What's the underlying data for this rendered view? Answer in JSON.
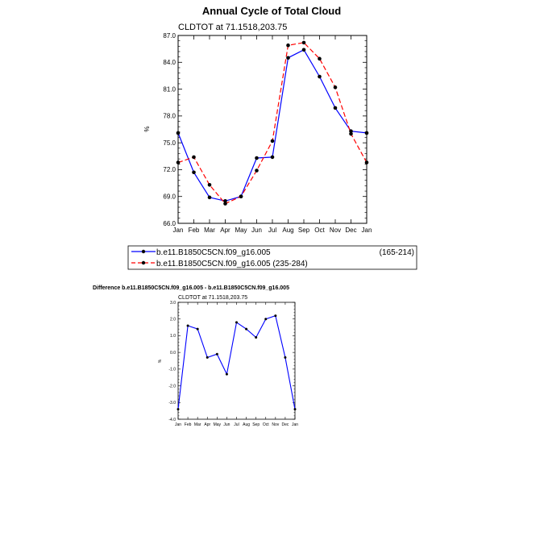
{
  "main_title": "Annual Cycle of Total Cloud",
  "chart_data": [
    {
      "type": "line",
      "title": "Annual Cycle of Total Cloud",
      "subtitle": "CLDTOT at 71.1518,203.75",
      "xlabel": "",
      "ylabel": "%",
      "categories": [
        "Jan",
        "Feb",
        "Mar",
        "Apr",
        "May",
        "Jun",
        "Jul",
        "Aug",
        "Sep",
        "Oct",
        "Nov",
        "Dec",
        "Jan"
      ],
      "ylim": [
        66.0,
        87.0
      ],
      "yticks": [
        "66.0",
        "69.0",
        "72.0",
        "75.0",
        "78.0",
        "81.0",
        "84.0",
        "87.0"
      ],
      "series": [
        {
          "name": "b.e11.B1850C5CN.f09_g16.005",
          "period": "(165-214)",
          "color": "#0000ff",
          "dash": "solid",
          "values": [
            76.1,
            71.7,
            68.9,
            68.5,
            69.0,
            73.3,
            73.4,
            84.5,
            85.4,
            82.4,
            78.9,
            76.3,
            76.1
          ]
        },
        {
          "name": "b.e11.B1850C5CN.f09_g16.005 (235-284)",
          "period": "",
          "color": "#ff0000",
          "dash": "dashed",
          "values": [
            72.8,
            73.4,
            70.3,
            68.2,
            69.0,
            71.9,
            75.2,
            85.9,
            86.2,
            84.4,
            81.2,
            76.0,
            72.8
          ]
        }
      ],
      "legend_position": "below"
    },
    {
      "type": "line",
      "title": "Difference b.e11.B1850C5CN.f09_g16.005 - b.e11.B1850C5CN.f09_g16.005",
      "subtitle": "CLDTOT at 71.1518,203.75",
      "xlabel": "",
      "ylabel": "%",
      "categories": [
        "Jan",
        "Feb",
        "Mar",
        "Apr",
        "May",
        "Jun",
        "Jul",
        "Aug",
        "Sep",
        "Oct",
        "Nov",
        "Dec",
        "Jan"
      ],
      "ylim": [
        -4.0,
        3.0
      ],
      "yticks": [
        "-4.0",
        "-3.0",
        "-2.0",
        "-1.0",
        "0.0",
        "1.0",
        "2.0",
        "3.0"
      ],
      "series": [
        {
          "name": "",
          "color": "#0000ff",
          "values": [
            -3.4,
            1.6,
            1.4,
            -0.3,
            -0.1,
            -1.3,
            1.8,
            1.4,
            0.9,
            2.0,
            2.2,
            -0.3,
            -3.4
          ]
        }
      ]
    }
  ]
}
